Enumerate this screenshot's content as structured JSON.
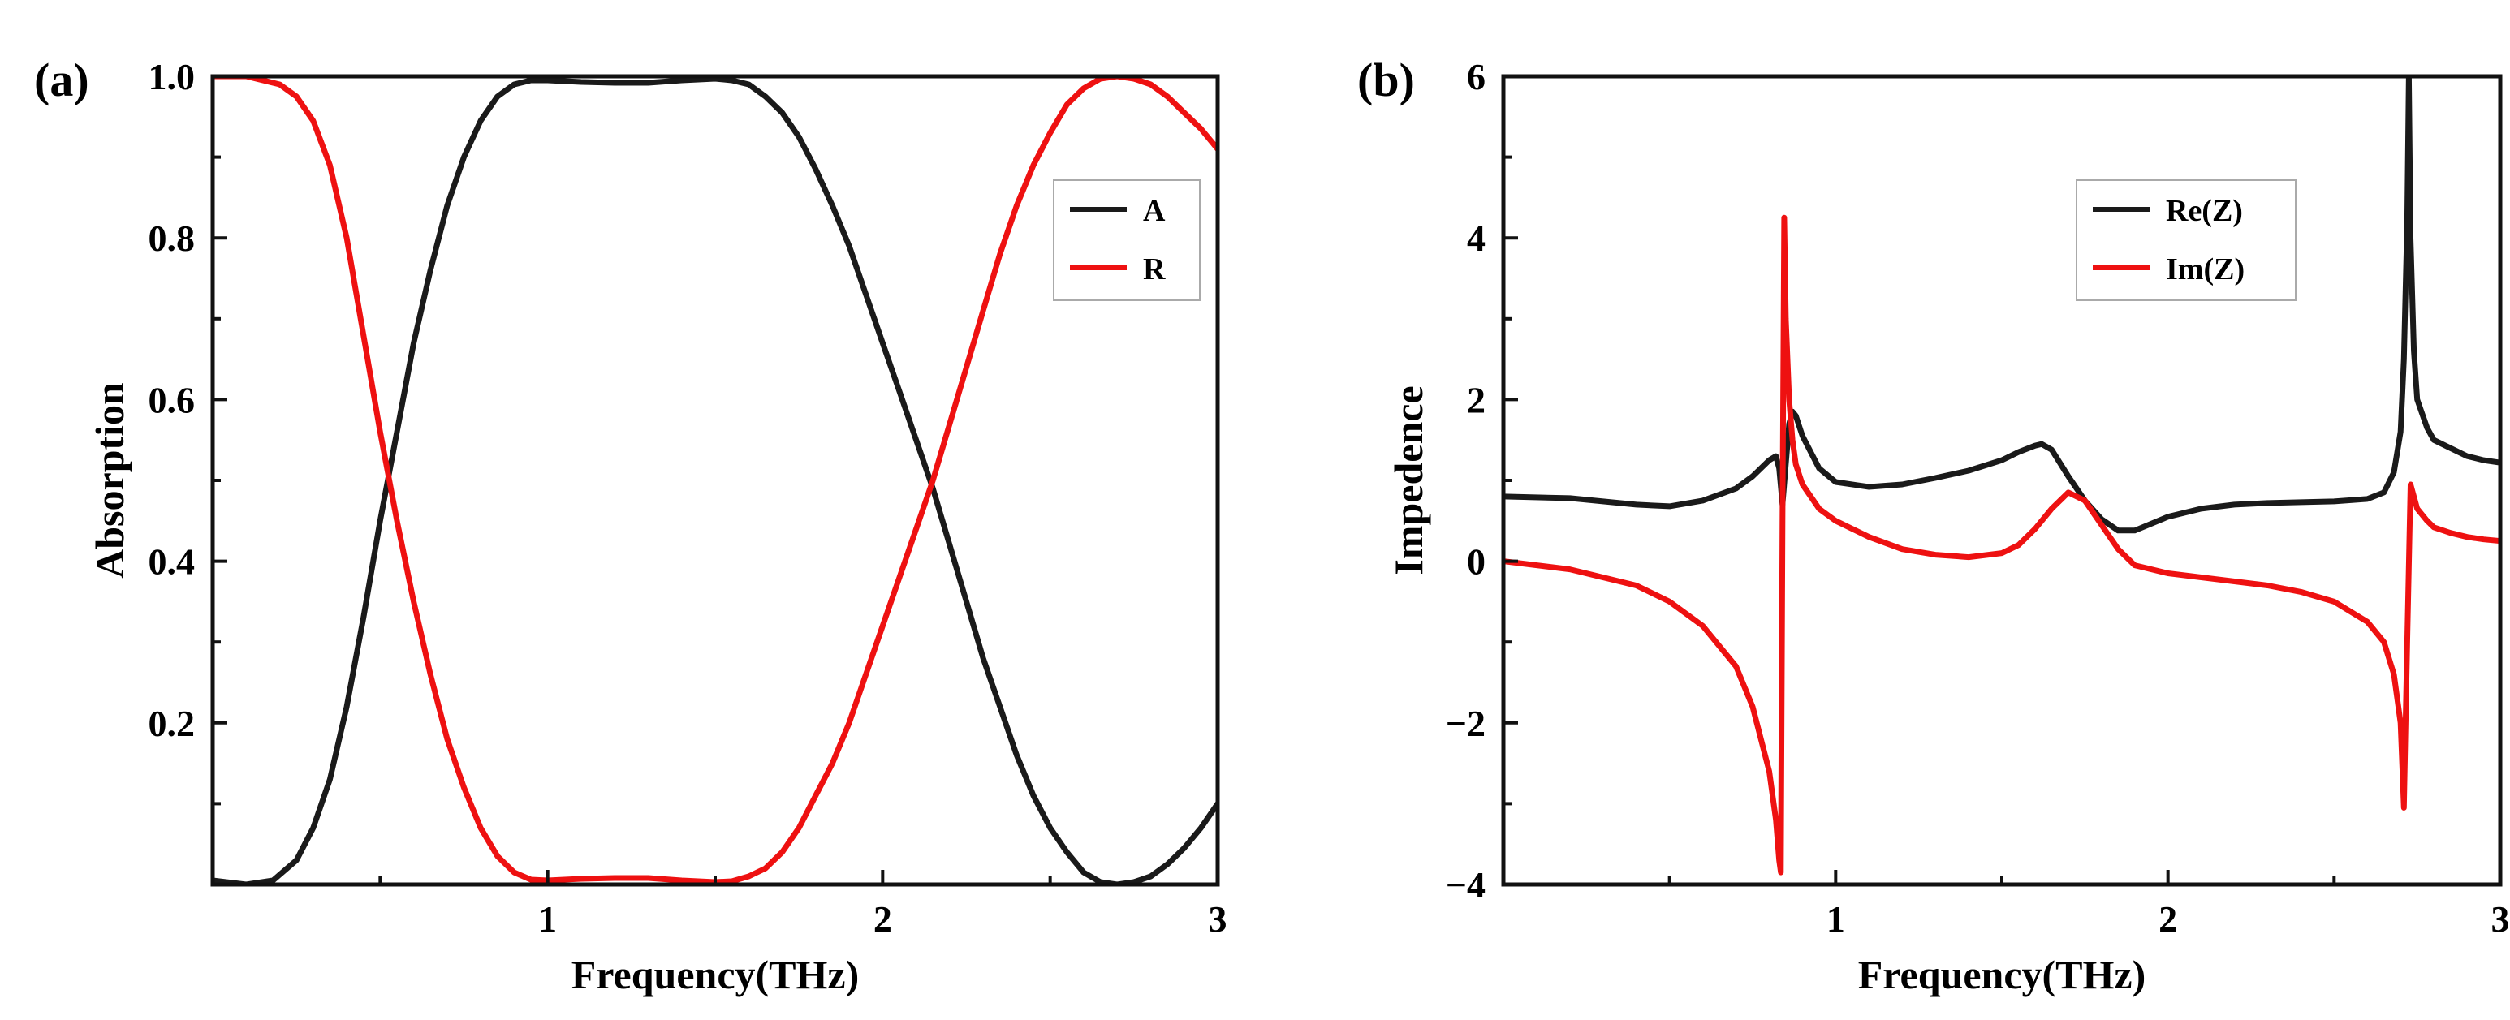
{
  "colors": {
    "series_black": "#1a1a1a",
    "series_red": "#ee1111",
    "axis": "#111111",
    "background": "#ffffff"
  },
  "chart_data": [
    {
      "type": "line",
      "panel_label": "(a)",
      "xlabel": "Frequency(THz)",
      "ylabel": "Absorption",
      "xlim": [
        0,
        3
      ],
      "ylim": [
        0,
        1
      ],
      "xticks": [
        1,
        2,
        3
      ],
      "xtick_labels": [
        "1",
        "2",
        "3"
      ],
      "yticks": [
        0.2,
        0.4,
        0.6,
        0.8,
        1.0
      ],
      "ytick_labels": [
        "0.2",
        "0.4",
        "0.6",
        "0.8",
        "1.0"
      ],
      "legend_position": "top-right",
      "series": [
        {
          "name": "A",
          "color": "#1a1a1a",
          "x": [
            0,
            0.1,
            0.18,
            0.25,
            0.3,
            0.35,
            0.4,
            0.45,
            0.5,
            0.55,
            0.6,
            0.65,
            0.7,
            0.75,
            0.8,
            0.85,
            0.9,
            0.95,
            1.0,
            1.1,
            1.2,
            1.3,
            1.4,
            1.5,
            1.55,
            1.6,
            1.65,
            1.7,
            1.75,
            1.8,
            1.85,
            1.9,
            1.95,
            2.0,
            2.05,
            2.1,
            2.15,
            2.2,
            2.25,
            2.3,
            2.35,
            2.4,
            2.45,
            2.5,
            2.55,
            2.6,
            2.65,
            2.7,
            2.75,
            2.8,
            2.85,
            2.9,
            2.95,
            3.0
          ],
          "y": [
            0.005,
            0.0,
            0.005,
            0.03,
            0.07,
            0.13,
            0.22,
            0.33,
            0.45,
            0.56,
            0.67,
            0.76,
            0.84,
            0.9,
            0.945,
            0.975,
            0.99,
            0.995,
            0.995,
            0.993,
            0.992,
            0.992,
            0.995,
            0.997,
            0.995,
            0.99,
            0.975,
            0.955,
            0.925,
            0.885,
            0.84,
            0.79,
            0.73,
            0.67,
            0.61,
            0.55,
            0.49,
            0.42,
            0.35,
            0.28,
            0.22,
            0.16,
            0.11,
            0.07,
            0.04,
            0.015,
            0.003,
            0.0,
            0.003,
            0.01,
            0.025,
            0.045,
            0.07,
            0.1
          ]
        },
        {
          "name": "R",
          "color": "#ee1111",
          "x": [
            0,
            0.1,
            0.2,
            0.25,
            0.3,
            0.35,
            0.4,
            0.45,
            0.5,
            0.55,
            0.6,
            0.65,
            0.7,
            0.75,
            0.8,
            0.85,
            0.9,
            0.95,
            1.0,
            1.1,
            1.2,
            1.3,
            1.4,
            1.5,
            1.55,
            1.6,
            1.65,
            1.7,
            1.75,
            1.8,
            1.85,
            1.9,
            1.95,
            2.0,
            2.05,
            2.1,
            2.15,
            2.2,
            2.25,
            2.3,
            2.35,
            2.4,
            2.45,
            2.5,
            2.55,
            2.6,
            2.65,
            2.7,
            2.75,
            2.8,
            2.85,
            2.9,
            2.95,
            3.0
          ],
          "y": [
            1.0,
            1.0,
            0.99,
            0.975,
            0.945,
            0.89,
            0.8,
            0.68,
            0.56,
            0.45,
            0.35,
            0.26,
            0.18,
            0.12,
            0.07,
            0.035,
            0.015,
            0.006,
            0.005,
            0.007,
            0.008,
            0.008,
            0.005,
            0.003,
            0.004,
            0.01,
            0.02,
            0.04,
            0.07,
            0.11,
            0.15,
            0.2,
            0.26,
            0.32,
            0.38,
            0.44,
            0.5,
            0.57,
            0.64,
            0.71,
            0.78,
            0.84,
            0.89,
            0.93,
            0.965,
            0.985,
            0.997,
            1.0,
            0.997,
            0.99,
            0.975,
            0.955,
            0.935,
            0.91
          ]
        }
      ]
    },
    {
      "type": "line",
      "panel_label": "(b)",
      "xlabel": "Frequency(THz)",
      "ylabel": "Impedence",
      "xlim": [
        0,
        3
      ],
      "ylim": [
        -4,
        6
      ],
      "xticks": [
        1,
        2,
        3
      ],
      "xtick_labels": [
        "1",
        "2",
        "3"
      ],
      "yticks": [
        -4,
        -2,
        0,
        2,
        4,
        6
      ],
      "ytick_labels": [
        "−4",
        "−2",
        "0",
        "2",
        "4",
        "6"
      ],
      "legend_position": "top-right",
      "series": [
        {
          "name": "Re(Z)",
          "color": "#1a1a1a",
          "x": [
            0,
            0.2,
            0.4,
            0.5,
            0.6,
            0.7,
            0.75,
            0.8,
            0.82,
            0.83,
            0.84,
            0.85,
            0.86,
            0.87,
            0.88,
            0.9,
            0.95,
            1.0,
            1.1,
            1.2,
            1.3,
            1.4,
            1.5,
            1.55,
            1.6,
            1.62,
            1.65,
            1.7,
            1.75,
            1.8,
            1.85,
            1.9,
            2.0,
            2.1,
            2.2,
            2.3,
            2.4,
            2.5,
            2.6,
            2.65,
            2.68,
            2.7,
            2.71,
            2.72,
            2.725,
            2.73,
            2.74,
            2.75,
            2.78,
            2.8,
            2.85,
            2.9,
            2.95,
            3.0
          ],
          "y": [
            0.8,
            0.78,
            0.7,
            0.68,
            0.75,
            0.9,
            1.05,
            1.25,
            1.3,
            1.15,
            0.7,
            1.2,
            1.7,
            1.85,
            1.8,
            1.55,
            1.15,
            0.98,
            0.92,
            0.95,
            1.03,
            1.12,
            1.25,
            1.35,
            1.43,
            1.45,
            1.38,
            1.05,
            0.75,
            0.52,
            0.38,
            0.38,
            0.55,
            0.65,
            0.7,
            0.72,
            0.73,
            0.74,
            0.77,
            0.85,
            1.1,
            1.6,
            2.5,
            4.2,
            6.0,
            4.0,
            2.6,
            2.0,
            1.65,
            1.5,
            1.4,
            1.3,
            1.25,
            1.22
          ]
        },
        {
          "name": "Im(Z)",
          "color": "#ee1111",
          "x": [
            0,
            0.2,
            0.4,
            0.5,
            0.6,
            0.7,
            0.75,
            0.8,
            0.82,
            0.83,
            0.835,
            0.84,
            0.845,
            0.85,
            0.86,
            0.87,
            0.88,
            0.9,
            0.95,
            1.0,
            1.1,
            1.2,
            1.3,
            1.4,
            1.5,
            1.55,
            1.6,
            1.65,
            1.7,
            1.75,
            1.8,
            1.85,
            1.9,
            2.0,
            2.1,
            2.2,
            2.3,
            2.4,
            2.5,
            2.6,
            2.65,
            2.68,
            2.7,
            2.71,
            2.72,
            2.73,
            2.74,
            2.75,
            2.78,
            2.8,
            2.85,
            2.9,
            2.95,
            3.0
          ],
          "y": [
            0.0,
            -0.1,
            -0.3,
            -0.5,
            -0.8,
            -1.3,
            -1.8,
            -2.6,
            -3.2,
            -3.7,
            -3.85,
            0.5,
            4.25,
            3.0,
            2.0,
            1.5,
            1.2,
            0.95,
            0.65,
            0.5,
            0.3,
            0.15,
            0.08,
            0.05,
            0.1,
            0.2,
            0.4,
            0.65,
            0.85,
            0.75,
            0.45,
            0.15,
            -0.05,
            -0.15,
            -0.2,
            -0.25,
            -0.3,
            -0.38,
            -0.5,
            -0.75,
            -1.0,
            -1.4,
            -2.0,
            -3.05,
            -1.0,
            0.95,
            0.8,
            0.65,
            0.5,
            0.42,
            0.35,
            0.3,
            0.27,
            0.25
          ]
        }
      ]
    }
  ]
}
